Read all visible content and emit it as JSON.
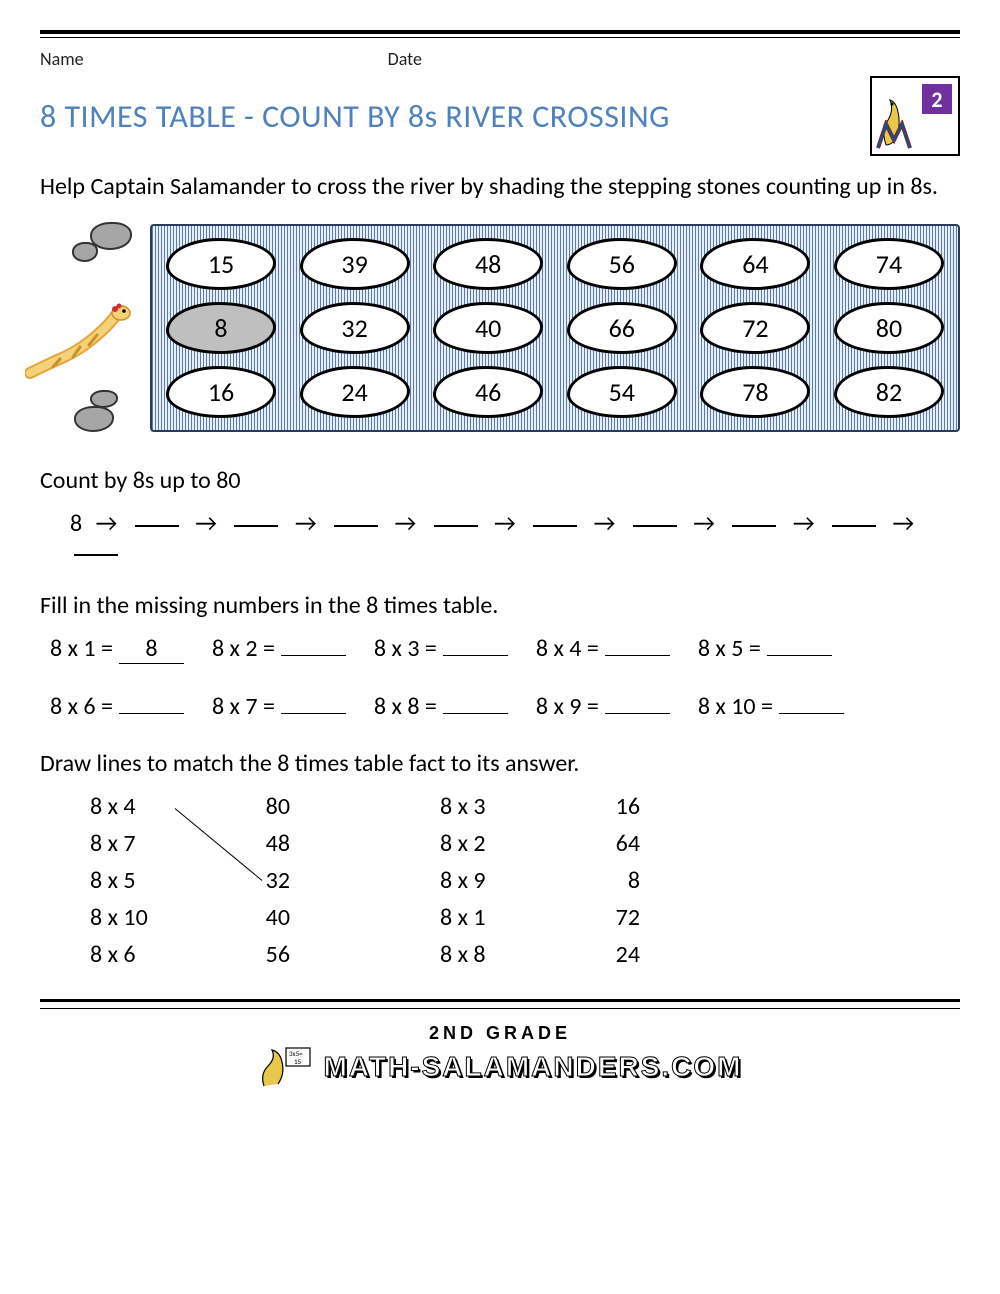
{
  "meta": {
    "name_label": "Name",
    "date_label": "Date"
  },
  "title": "8 TIMES TABLE - COUNT BY 8s RIVER CROSSING",
  "logo": {
    "grade_badge": "2"
  },
  "instructions": "Help Captain Salamander to cross the river by shading the stepping stones counting up in 8s.",
  "river": {
    "rows": [
      [
        "15",
        "39",
        "48",
        "56",
        "64",
        "74"
      ],
      [
        "8",
        "32",
        "40",
        "66",
        "72",
        "80"
      ],
      [
        "16",
        "24",
        "46",
        "54",
        "78",
        "82"
      ]
    ],
    "shaded": [
      [
        1,
        0
      ]
    ],
    "colors": {
      "stone_fill": "#ffffff",
      "stone_shaded": "#bfbfbf",
      "stone_border": "#000000",
      "water_stripe_dark": "#5b7ba8",
      "water_stripe_light": "#e8eef7"
    }
  },
  "count_section": {
    "label": "Count by 8s up to 80",
    "start": "8",
    "arrow": "→",
    "blanks": 9
  },
  "fill_section": {
    "label": "Fill in the missing numbers in the 8 times table.",
    "row1": [
      {
        "q": "8 x 1 =",
        "a": "8"
      },
      {
        "q": "8 x 2 =",
        "a": ""
      },
      {
        "q": "8 x 3 =",
        "a": ""
      },
      {
        "q": "8 x 4 =",
        "a": ""
      },
      {
        "q": "8 x 5 =",
        "a": ""
      }
    ],
    "row2": [
      {
        "q": "8 x 6 =",
        "a": ""
      },
      {
        "q": "8 x 7 =",
        "a": ""
      },
      {
        "q": "8 x 8 =",
        "a": ""
      },
      {
        "q": "8 x 9 =",
        "a": ""
      },
      {
        "q": "8 x 10 =",
        "a": ""
      }
    ]
  },
  "match_section": {
    "label": "Draw lines to match the 8 times table fact to its answer.",
    "left_facts": [
      "8 x 4",
      "8 x 7",
      "8 x 5",
      "8 x 10",
      "8 x 6"
    ],
    "left_answers": [
      "80",
      "48",
      "32",
      "40",
      "56"
    ],
    "right_facts": [
      "8 x 3",
      "8 x 2",
      "8 x 9",
      "8 x 1",
      "8 x 8"
    ],
    "right_answers": [
      "16",
      "64",
      "8",
      "72",
      "24"
    ],
    "example_line": {
      "from_row": 0,
      "to_row": 2
    }
  },
  "footer": {
    "grade": "2ND GRADE",
    "brand": "MATH-SALAMANDERS.COM"
  },
  "colors": {
    "title": "#4f81bd",
    "text": "#000000",
    "logo_badge": "#7030a0",
    "rock_gray": "#a6a6a6"
  }
}
